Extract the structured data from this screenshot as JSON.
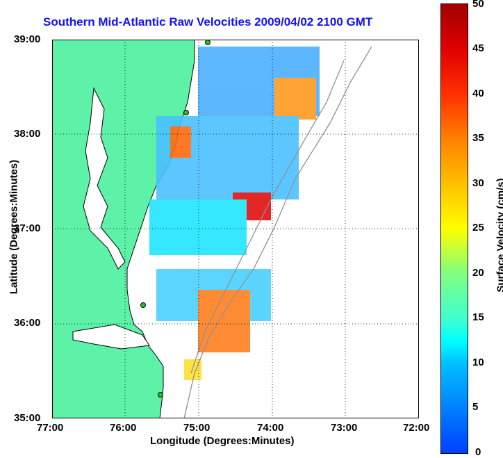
{
  "title": "Southern Mid-Atlantic Raw Velocities 2009/04/02 2100 GMT",
  "axes": {
    "xlabel": "Longitude (Degrees:Minutes)",
    "ylabel": "Latitude (Degrees:Minutes)",
    "xticks": [
      "77:00",
      "76:00",
      "75:00",
      "74:00",
      "73:00",
      "72:00"
    ],
    "yticks": [
      "39:00",
      "38:00",
      "37:00",
      "36:00",
      "35:00"
    ]
  },
  "colorbar": {
    "label": "Surface Velocity (cm/s)",
    "ticks": [
      "50",
      "45",
      "40",
      "35",
      "30",
      "25",
      "20",
      "15",
      "10",
      "5",
      "0"
    ]
  },
  "colors": {
    "land": "#5ef1a8",
    "water": "#ffffff",
    "title": "#1010ff",
    "station": "#22c822"
  }
}
